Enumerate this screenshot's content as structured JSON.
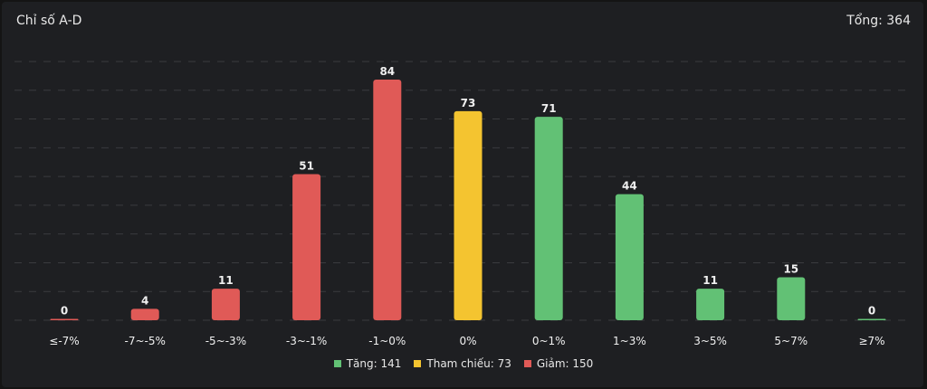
{
  "header": {
    "title": "Chỉ số A-D",
    "total": "Tổng: 364"
  },
  "colors": {
    "down": "#e05a57",
    "ref": "#f4c430",
    "up": "#62c175",
    "grid": "#3a3b3f",
    "label": "#f0f0f0"
  },
  "legend": [
    {
      "label": "Tăng: 141",
      "color": "#62c175"
    },
    {
      "label": "Tham chiếu: 73",
      "color": "#f4c430"
    },
    {
      "label": "Giảm: 150",
      "color": "#e05a57"
    }
  ],
  "chart_data": {
    "type": "bar",
    "title": "Chỉ số A-D",
    "categories": [
      "≤-7%",
      "-7~-5%",
      "-5~-3%",
      "-3~-1%",
      "-1~0%",
      "0%",
      "0~1%",
      "1~3%",
      "3~5%",
      "5~7%",
      "≥7%"
    ],
    "values": [
      0,
      4,
      11,
      51,
      84,
      73,
      71,
      44,
      11,
      15,
      0
    ],
    "bar_colors": [
      "down",
      "down",
      "down",
      "down",
      "down",
      "ref",
      "up",
      "up",
      "up",
      "up",
      "up"
    ],
    "ylim": [
      0,
      90
    ],
    "grid": true,
    "legend_position": "bottom"
  }
}
